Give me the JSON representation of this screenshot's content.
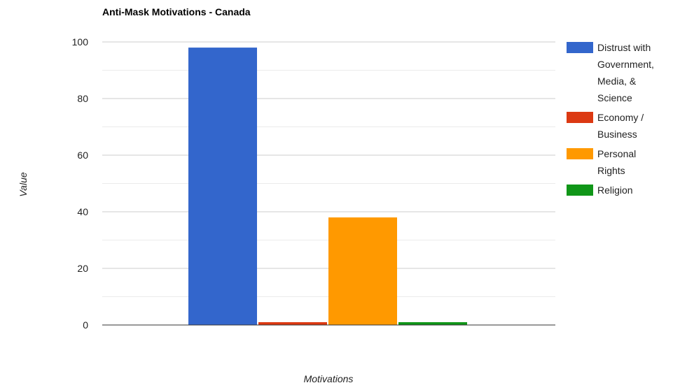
{
  "chart_data": {
    "type": "bar",
    "title": "Anti-Mask Motivations - Canada",
    "xlabel": "Motivations",
    "ylabel": "Value",
    "ylim": [
      0,
      100
    ],
    "yticks": [
      0,
      20,
      40,
      60,
      80,
      100
    ],
    "grid": true,
    "legend_position": "right",
    "categories": [
      ""
    ],
    "series": [
      {
        "name": "Distrust with Government, Media, & Science",
        "values": [
          98
        ],
        "color": "#3366cc",
        "legend_lines": [
          "Distrust with",
          "Government,",
          "Media, &",
          "Science"
        ]
      },
      {
        "name": "Economy / Business",
        "values": [
          1
        ],
        "color": "#dc3912",
        "legend_lines": [
          "Economy /",
          "Business"
        ]
      },
      {
        "name": "Personal Rights",
        "values": [
          38
        ],
        "color": "#ff9900",
        "legend_lines": [
          "Personal",
          "Rights"
        ]
      },
      {
        "name": "Religion",
        "values": [
          1
        ],
        "color": "#109618",
        "legend_lines": [
          "Religion"
        ]
      }
    ]
  }
}
